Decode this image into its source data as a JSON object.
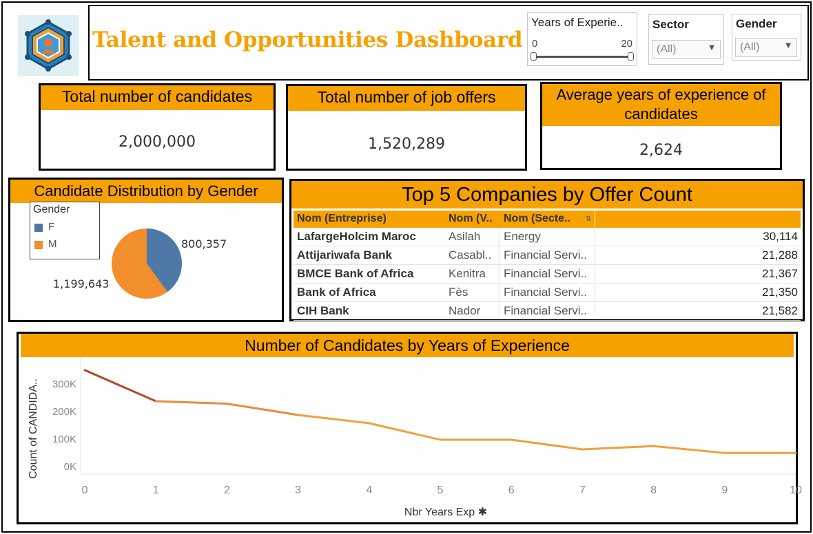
{
  "header": {
    "title": "Talent and Opportunities Dashboard",
    "logo": "network-people-logo"
  },
  "filters": {
    "experience": {
      "label": "Years of Experie..",
      "min": "0",
      "max": "20"
    },
    "sector": {
      "label": "Sector",
      "value": "(All)"
    },
    "gender": {
      "label": "Gender",
      "value": "(All)"
    }
  },
  "kpis": [
    {
      "title": "Total number of candidates",
      "value": "2,000,000"
    },
    {
      "title": "Total number of job offers",
      "value": "1,520,289"
    },
    {
      "title": "Average years of experience of candidates",
      "value": "2,624"
    }
  ],
  "gender_panel": {
    "title": "Candidate Distribution by Gender",
    "legend_title": "Gender",
    "items": [
      {
        "label": "F",
        "value": 800357,
        "value_label": "800,357",
        "color": "#4e79a7"
      },
      {
        "label": "M",
        "value": 1199643,
        "value_label": "1,199,643",
        "color": "#f28e2b"
      }
    ]
  },
  "companies": {
    "title": "Top 5 Companies by Offer Count",
    "columns": [
      "Nom (Entreprise)",
      "Nom (V..",
      "Nom (Secte.."
    ],
    "rows": [
      {
        "name": "LafargeHolcim Maroc",
        "city": "Asilah",
        "sector": "Energy",
        "count": "30,114"
      },
      {
        "name": "Attijariwafa Bank",
        "city": "Casabl..",
        "sector": "Financial Servi..",
        "count": "21,288"
      },
      {
        "name": "BMCE Bank of Africa",
        "city": "Kenitra",
        "sector": "Financial Servi..",
        "count": "21,367"
      },
      {
        "name": "Bank of Africa",
        "city": "Fès",
        "sector": "Financial Servi..",
        "count": "21,350"
      },
      {
        "name": "CIH Bank",
        "city": "Nador",
        "sector": "Financial Servi..",
        "count": "21,582"
      }
    ]
  },
  "chart_data": {
    "type": "line",
    "title": "Number of Candidates by Years of Experience",
    "xlabel": "Nbr Years Exp",
    "ylabel": "Count of CANDIDA..",
    "x": [
      0,
      1,
      2,
      3,
      4,
      5,
      6,
      7,
      8,
      9,
      10
    ],
    "x_tick_labels": [
      "0",
      "1",
      "2",
      "3",
      "4",
      "5",
      "6",
      "7",
      "8",
      "9",
      "10"
    ],
    "values": [
      348000,
      235000,
      226000,
      185000,
      155000,
      95000,
      95000,
      60000,
      72000,
      47000,
      47000
    ],
    "y_ticks": [
      0,
      100000,
      200000,
      300000
    ],
    "y_tick_labels": [
      "0K",
      "100K",
      "200K",
      "300K"
    ],
    "ylim": [
      -30000,
      385000
    ],
    "xlim": [
      0,
      10
    ],
    "grid": false,
    "color_start": "#b5472a",
    "color_end": "#f0a040"
  },
  "colors": {
    "accent": "#f7a100"
  }
}
